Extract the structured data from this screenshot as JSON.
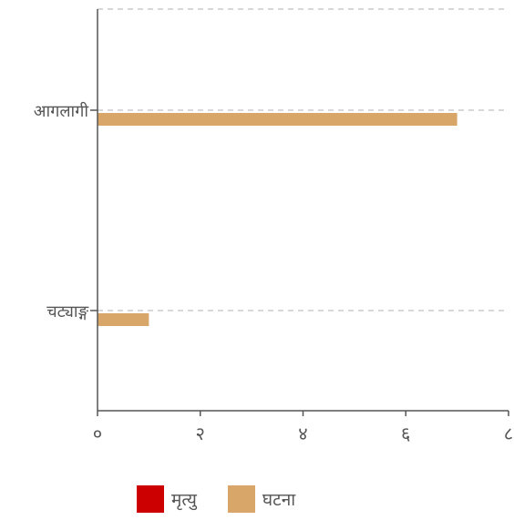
{
  "chart_data": {
    "type": "bar",
    "orientation": "horizontal",
    "categories": [
      "आगलागी",
      "चट्याङ्ग"
    ],
    "x_ticks": [
      "०",
      "२",
      "४",
      "६",
      "८"
    ],
    "xlim": [
      0,
      8
    ],
    "grid": true,
    "legend_position": "bottom",
    "series": [
      {
        "name": "मृत्यु",
        "color": "#cc0000",
        "values": [
          0,
          0
        ]
      },
      {
        "name": "घटना",
        "color": "#d9a66a",
        "values": [
          7,
          1
        ]
      }
    ]
  }
}
